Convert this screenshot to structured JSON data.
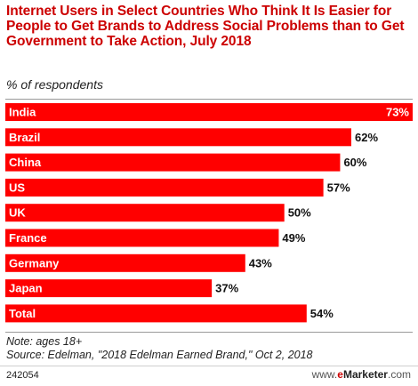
{
  "header": {
    "title": "Internet Users in Select Countries Who Think It Is Easier for People to Get Brands to Address Social Problems than to Get Government to Take Action, July 2018",
    "subtitle": "% of respondents"
  },
  "footer": {
    "note": "Note: ages 18+",
    "source": "Source: Edelman, \"2018 Edelman Earned Brand,\" Oct 2, 2018",
    "chart_id": "242054",
    "brand_prefix": "www.",
    "brand_e": "e",
    "brand_name": "Marketer",
    "brand_suffix": ".com"
  },
  "colors": {
    "bar": "#ff0000",
    "label_on_bar": "#ffffff",
    "value_label": "#111111",
    "title": "#cc0000"
  },
  "chart_data": {
    "type": "bar",
    "orientation": "horizontal",
    "categories": [
      "India",
      "Brazil",
      "China",
      "US",
      "UK",
      "France",
      "Germany",
      "Japan",
      "Total"
    ],
    "values": [
      73,
      62,
      60,
      57,
      50,
      49,
      43,
      37,
      54
    ],
    "value_suffix": "%",
    "title": "Internet Users in Select Countries Who Think It Is Easier for People to Get Brands to Address Social Problems than to Get Government to Take Action, July 2018",
    "subtitle": "% of respondents",
    "xlabel": "",
    "ylabel": "",
    "xlim": [
      0,
      73
    ],
    "grid": false,
    "legend": "none"
  }
}
